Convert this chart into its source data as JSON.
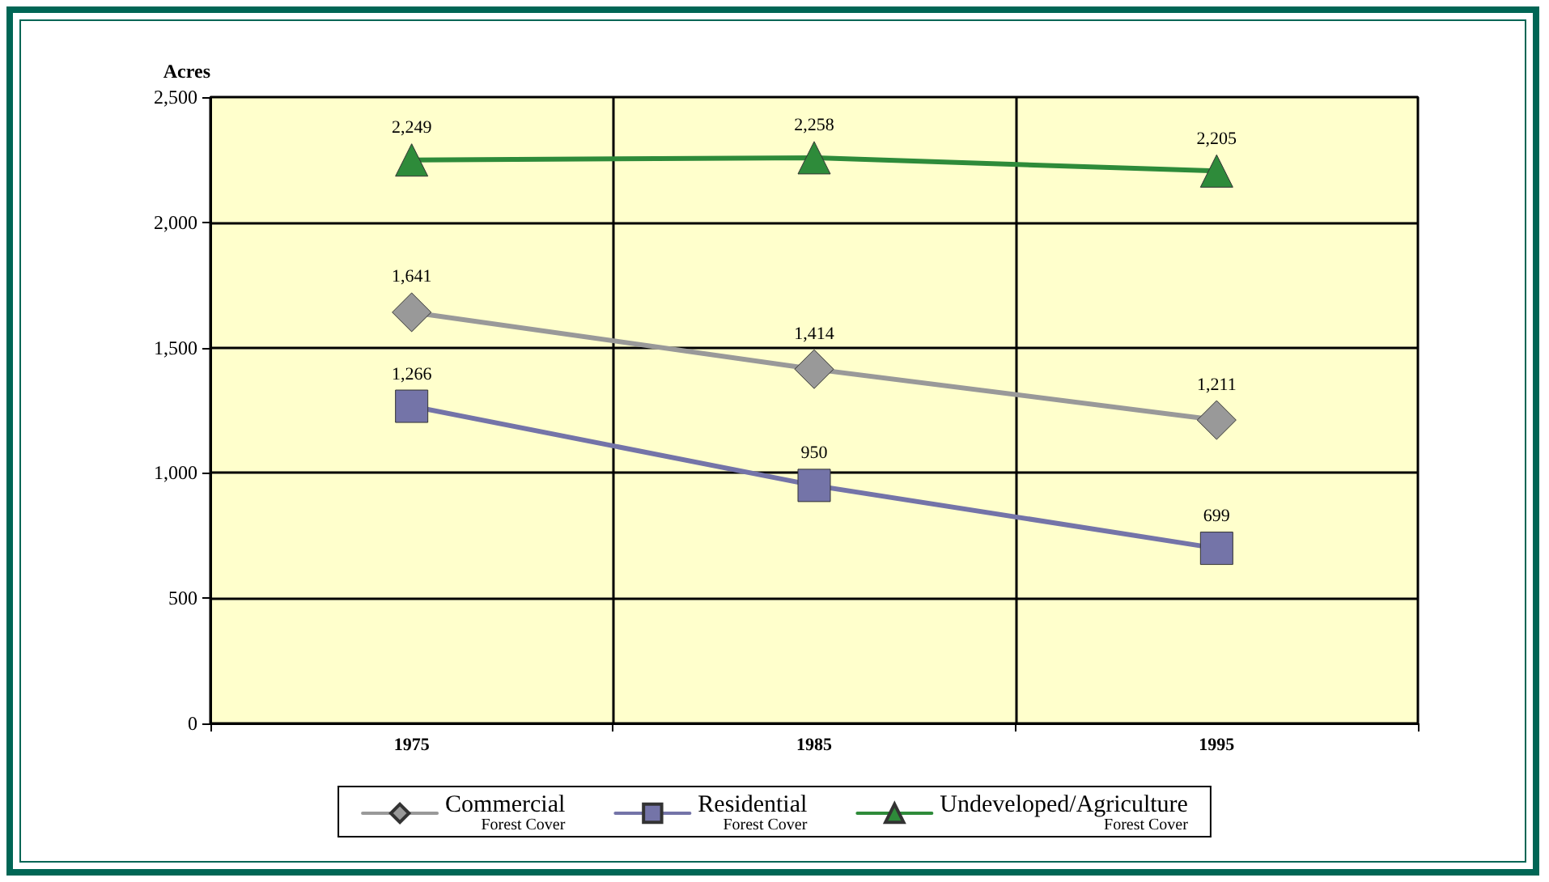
{
  "chart_data": {
    "type": "line",
    "ylabel": "Acres",
    "categories": [
      "1975",
      "1985",
      "1995"
    ],
    "series": [
      {
        "name": "Commercial\nForest Cover",
        "color": "#999999",
        "marker": "diamond",
        "values": [
          1641,
          1414,
          1211
        ],
        "value_labels": [
          "1,641",
          "1,414",
          "1,211"
        ]
      },
      {
        "name": "Residential\nForest Cover",
        "color": "#7474a8",
        "marker": "square",
        "values": [
          1266,
          950,
          699
        ],
        "value_labels": [
          "1,266",
          "950",
          "699"
        ]
      },
      {
        "name": "Undeveloped/Agriculture\nForest Cover",
        "color": "#2e8b3a",
        "marker": "triangle",
        "values": [
          2249,
          2258,
          2205
        ],
        "value_labels": [
          "2,249",
          "2,258",
          "2,205"
        ]
      }
    ],
    "ylim": [
      0,
      2500
    ],
    "yticks": [
      0,
      500,
      {
        "value": 1000,
        "label": "1,000"
      },
      {
        "value": 1500,
        "label": "1,500"
      },
      {
        "value": 2000,
        "label": "2,000"
      },
      {
        "value": 2500,
        "label": "2,500"
      }
    ],
    "grid": true,
    "legend": "bottom"
  }
}
